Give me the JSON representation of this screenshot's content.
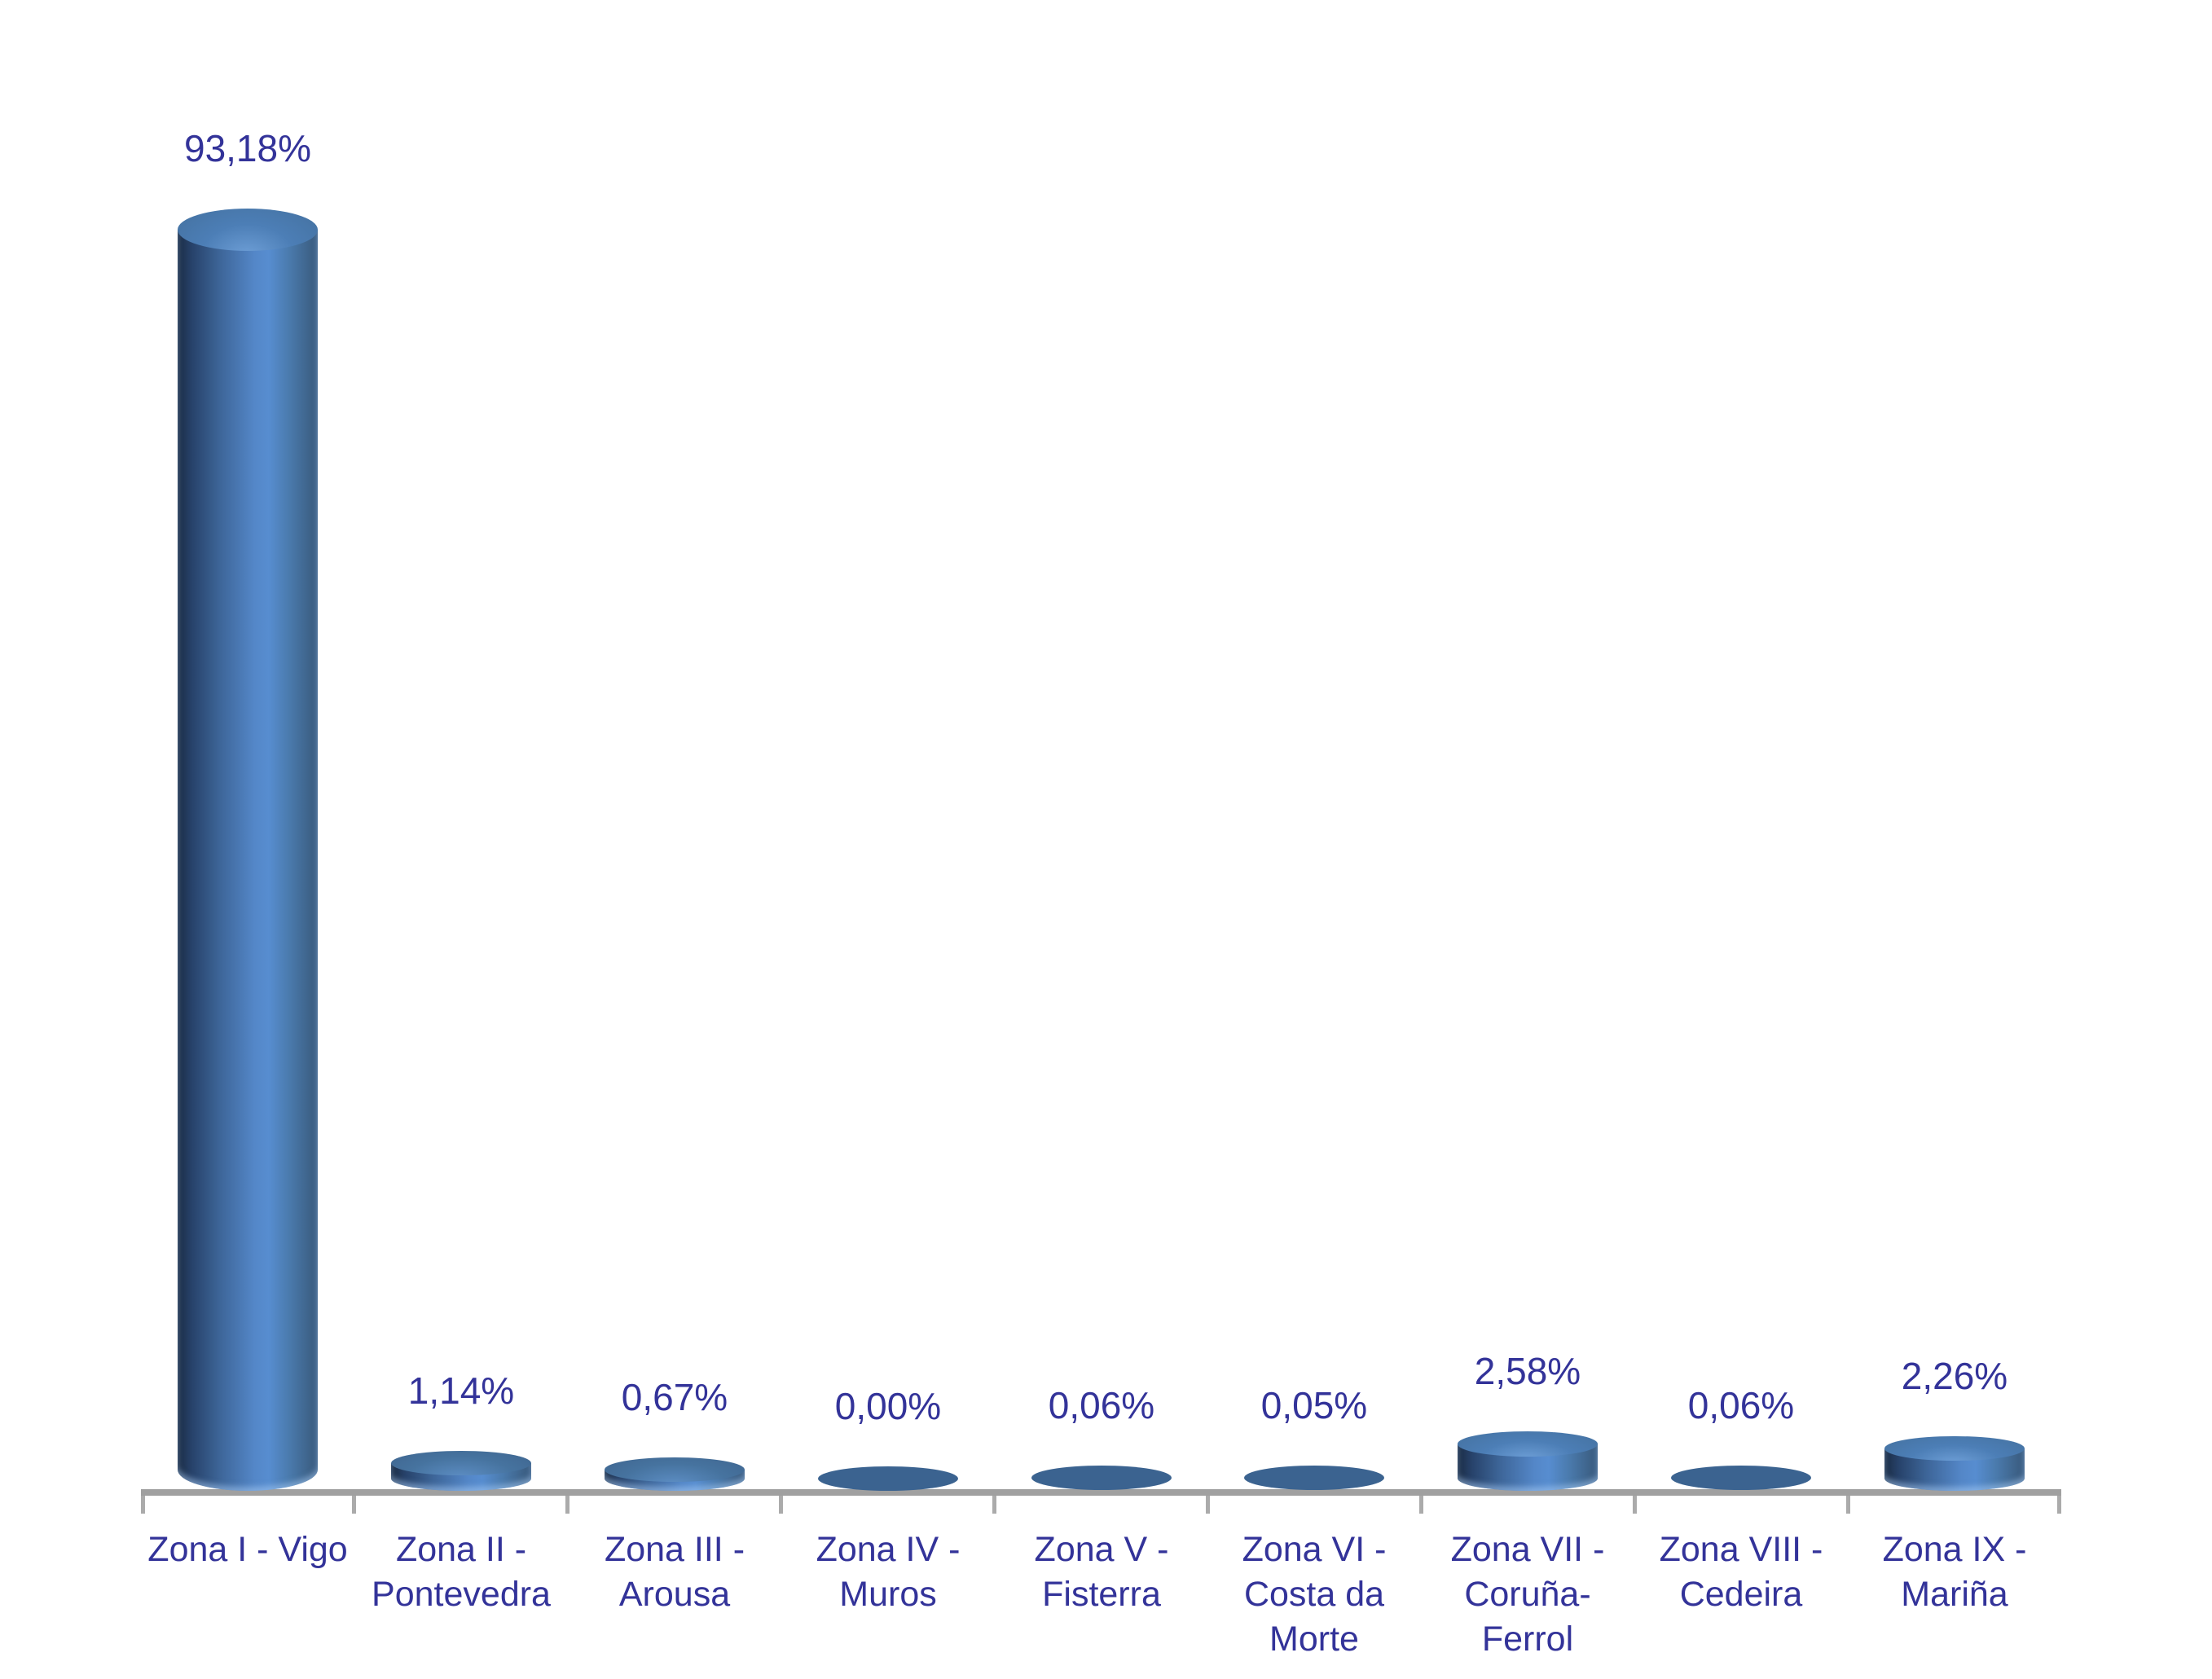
{
  "chart_data": {
    "type": "bar",
    "subtype": "3d-cylinder",
    "title": "",
    "xlabel": "",
    "ylabel": "",
    "ylim": [
      0,
      100
    ],
    "grid": false,
    "legend": false,
    "value_format": "percent-comma-decimal",
    "categories": [
      "Zona I - Vigo",
      "Zona II - Pontevedra",
      "Zona III - Arousa",
      "Zona IV - Muros",
      "Zona V - Fisterra",
      "Zona VI - Costa da Morte",
      "Zona VII - Coruña-Ferrol",
      "Zona VIII - Cedeira",
      "Zona IX - Mariña"
    ],
    "category_label_lines": [
      [
        "Zona I - Vigo"
      ],
      [
        "Zona II -",
        "Pontevedra"
      ],
      [
        "Zona III -",
        "Arousa"
      ],
      [
        "Zona IV -",
        "Muros"
      ],
      [
        "Zona V -",
        "Fisterra"
      ],
      [
        "Zona VI -",
        "Costa da",
        "Morte"
      ],
      [
        "Zona VII -",
        "Coruña-",
        "Ferrol"
      ],
      [
        "Zona VIII -",
        "Cedeira"
      ],
      [
        "Zona IX -",
        "Mariña"
      ]
    ],
    "values": [
      93.18,
      1.14,
      0.67,
      0.0,
      0.06,
      0.05,
      2.58,
      0.06,
      2.26
    ],
    "value_labels": [
      "93,18%",
      "1,14%",
      "0,67%",
      "0,00%",
      "0,06%",
      "0,05%",
      "2,58%",
      "0,06%",
      "2,26%"
    ],
    "colors": {
      "background": "#FFFFFF",
      "label_text": "#333399",
      "axis_line": "#A0A0A0",
      "tick": "#ABABAB",
      "bar_side_gradient": [
        "#1B2C44",
        "#27426A",
        "#3D6598",
        "#5487C8",
        "#578DD0",
        "#4A7AAC",
        "#3D6187",
        "#3A5C82"
      ],
      "bar_top_highlight": "#6FA0D8",
      "bar_top_tall": "#4C7EB6",
      "bar_top_tall_back": "#44719F",
      "bar_top_short_highlight": "#5E8FC6",
      "bar_top_short": "#46739F",
      "bar_top_short_back": "#3F658F",
      "bar_top_flat": "#3B6390"
    }
  }
}
